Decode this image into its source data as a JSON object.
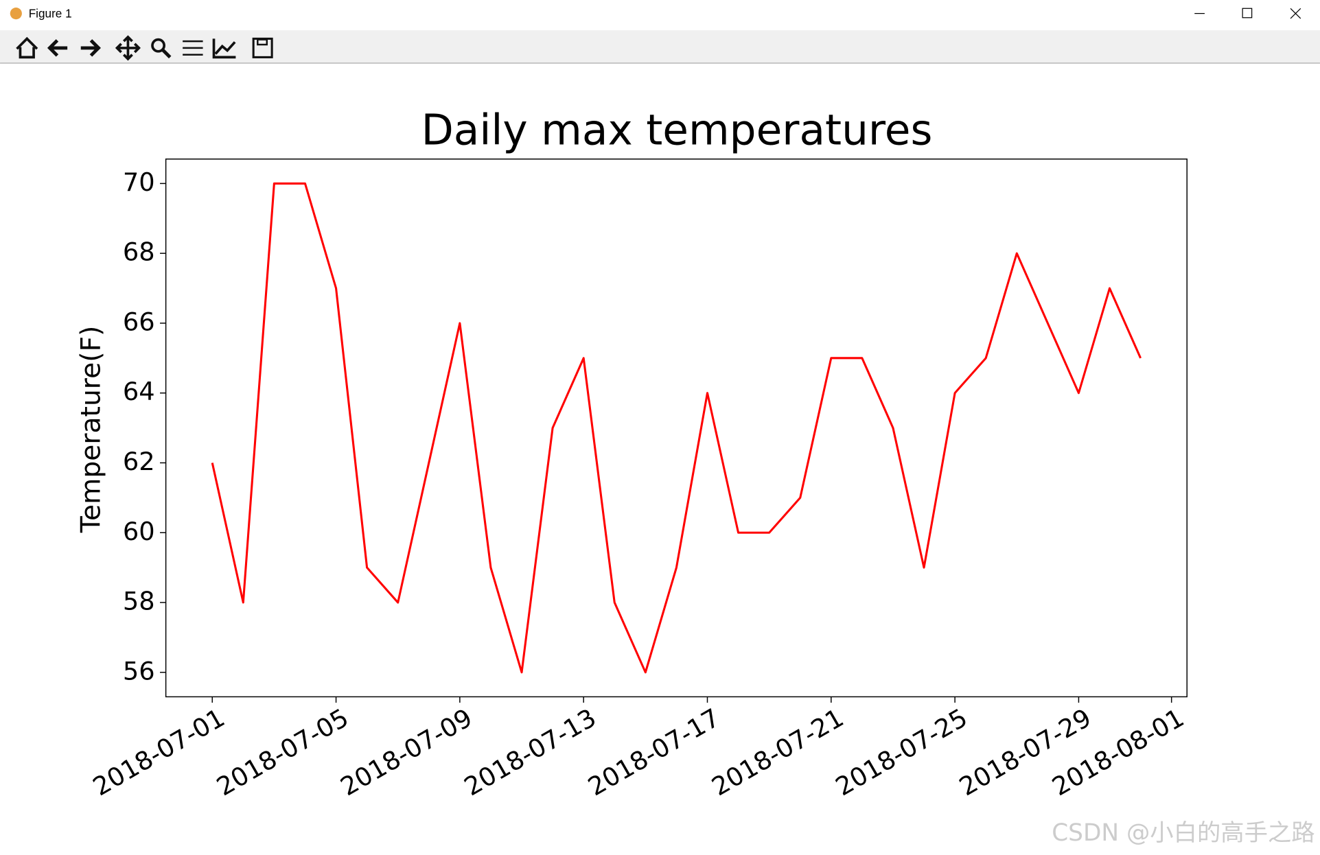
{
  "window": {
    "title": "Figure 1"
  },
  "watermark": "CSDN @小白的高手之路",
  "chart_data": {
    "type": "line",
    "title": "Daily max temperatures",
    "y_label": "Temperature(F)",
    "x": [
      "2018-07-01",
      "2018-07-02",
      "2018-07-03",
      "2018-07-04",
      "2018-07-05",
      "2018-07-06",
      "2018-07-07",
      "2018-07-08",
      "2018-07-09",
      "2018-07-10",
      "2018-07-11",
      "2018-07-12",
      "2018-07-13",
      "2018-07-14",
      "2018-07-15",
      "2018-07-16",
      "2018-07-17",
      "2018-07-18",
      "2018-07-19",
      "2018-07-20",
      "2018-07-21",
      "2018-07-22",
      "2018-07-23",
      "2018-07-24",
      "2018-07-25",
      "2018-07-26",
      "2018-07-27",
      "2018-07-28",
      "2018-07-29",
      "2018-07-30",
      "2018-07-31"
    ],
    "values": [
      62,
      58,
      70,
      70,
      67,
      59,
      58,
      62,
      66,
      59,
      56,
      63,
      65,
      58,
      56,
      59,
      64,
      60,
      60,
      61,
      65,
      65,
      63,
      59,
      64,
      65,
      68,
      66,
      64,
      67,
      65
    ],
    "color": "#ff0000",
    "xlim": [
      "2018-06-29T12:00:00Z",
      "2018-08-01T12:00:00Z"
    ],
    "xticks": [
      "2018-07-01",
      "2018-07-05",
      "2018-07-09",
      "2018-07-13",
      "2018-07-17",
      "2018-07-21",
      "2018-07-25",
      "2018-07-29",
      "2018-08-01"
    ],
    "ylim": [
      55.3,
      70.7
    ],
    "yticks": [
      56,
      58,
      60,
      62,
      64,
      66,
      68,
      70
    ],
    "grid": false
  }
}
